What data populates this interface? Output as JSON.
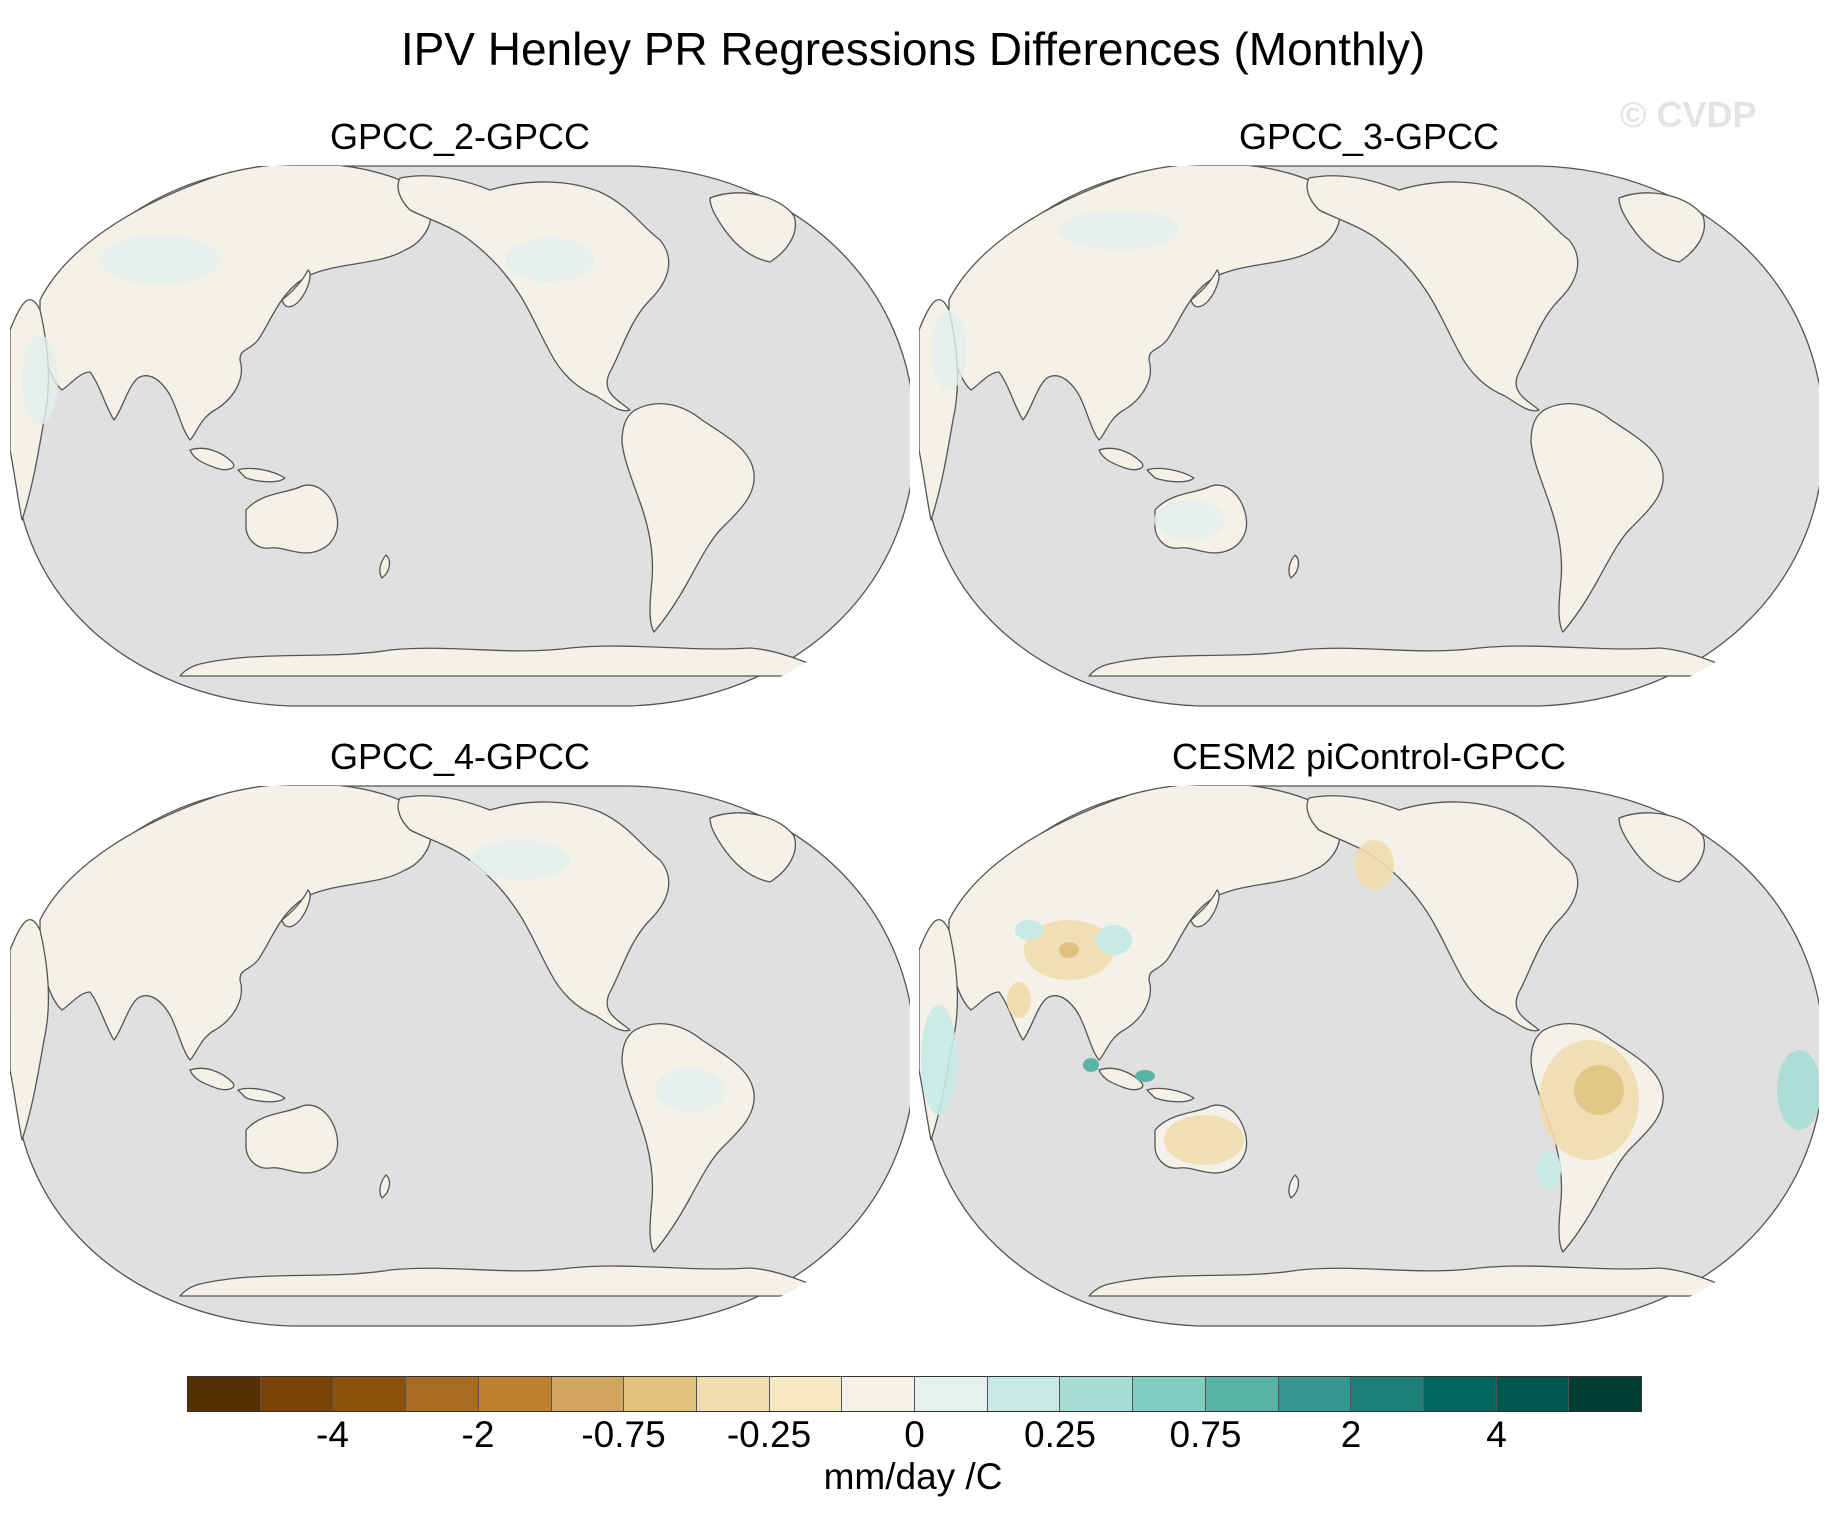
{
  "title": "IPV Henley PR Regressions Differences (Monthly)",
  "watermark": "© CVDP",
  "panels": [
    {
      "title": "GPCC_2-GPCC"
    },
    {
      "title": "GPCC_3-GPCC"
    },
    {
      "title": "GPCC_4-GPCC"
    },
    {
      "title": "CESM2 piControl-GPCC"
    }
  ],
  "colorbar": {
    "label_values": [
      "-4",
      "-2",
      "-0.75",
      "-0.25",
      "0",
      "0.25",
      "0.75",
      "2",
      "4"
    ],
    "units": "mm/day /C",
    "colors": [
      "#543005",
      "#7a4409",
      "#8c510a",
      "#a86b20",
      "#bf812d",
      "#d2a55e",
      "#dfc27d",
      "#efdcaf",
      "#f6e8c3",
      "#f5f2ea",
      "#e6f1ee",
      "#c7eae5",
      "#a8ddd4",
      "#80cdc1",
      "#5ab4a6",
      "#35978f",
      "#1d8076",
      "#01665e",
      "#01574e",
      "#003c30"
    ]
  },
  "chart_data": {
    "type": "map",
    "title": "IPV Henley PR Regressions Differences (Monthly)",
    "projection": "Robinson, Pacific-centered",
    "units": "mm/day /C",
    "contour_levels": [
      -4,
      -2,
      -0.75,
      -0.25,
      0,
      0.25,
      0.75,
      2,
      4
    ],
    "panels": [
      {
        "name": "GPCC_2-GPCC",
        "description": "near-zero differences over land (-0.25 to 0.25)"
      },
      {
        "name": "GPCC_3-GPCC",
        "description": "near-zero differences over land (-0.25 to 0.25)"
      },
      {
        "name": "GPCC_4-GPCC",
        "description": "near-zero differences over land (-0.25 to 0.25)"
      },
      {
        "name": "CESM2 piControl-GPCC",
        "description": "negative anomalies over South America, Australia, South Asia; positive over Maritime Continent, East Africa"
      }
    ]
  }
}
